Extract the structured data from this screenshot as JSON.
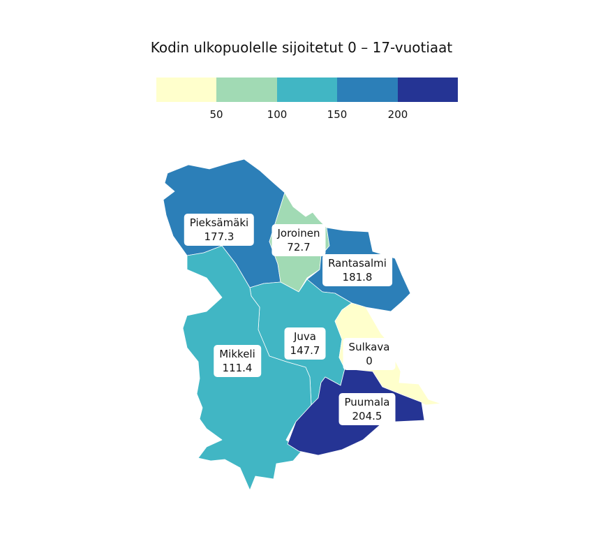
{
  "title": "Kodin ulkopuolelle sijoitetut 0 – 17-vuotiaat",
  "legend": {
    "colors": [
      "#ffffcc",
      "#a1dab4",
      "#41b6c4",
      "#2c7fb8",
      "#253494"
    ],
    "ticks": [
      "50",
      "100",
      "150",
      "200"
    ]
  },
  "regions": [
    {
      "name": "Pieksämäki",
      "value": "177.3",
      "color": "#2c7fb8"
    },
    {
      "name": "Joroinen",
      "value": "72.7",
      "color": "#a1dab4"
    },
    {
      "name": "Rantasalmi",
      "value": "181.8",
      "color": "#2c7fb8"
    },
    {
      "name": "Juva",
      "value": "147.7",
      "color": "#41b6c4"
    },
    {
      "name": "Sulkava",
      "value": "0",
      "color": "#ffffcc"
    },
    {
      "name": "Mikkeli",
      "value": "111.4",
      "color": "#41b6c4"
    },
    {
      "name": "Puumala",
      "value": "204.5",
      "color": "#253494"
    }
  ]
}
